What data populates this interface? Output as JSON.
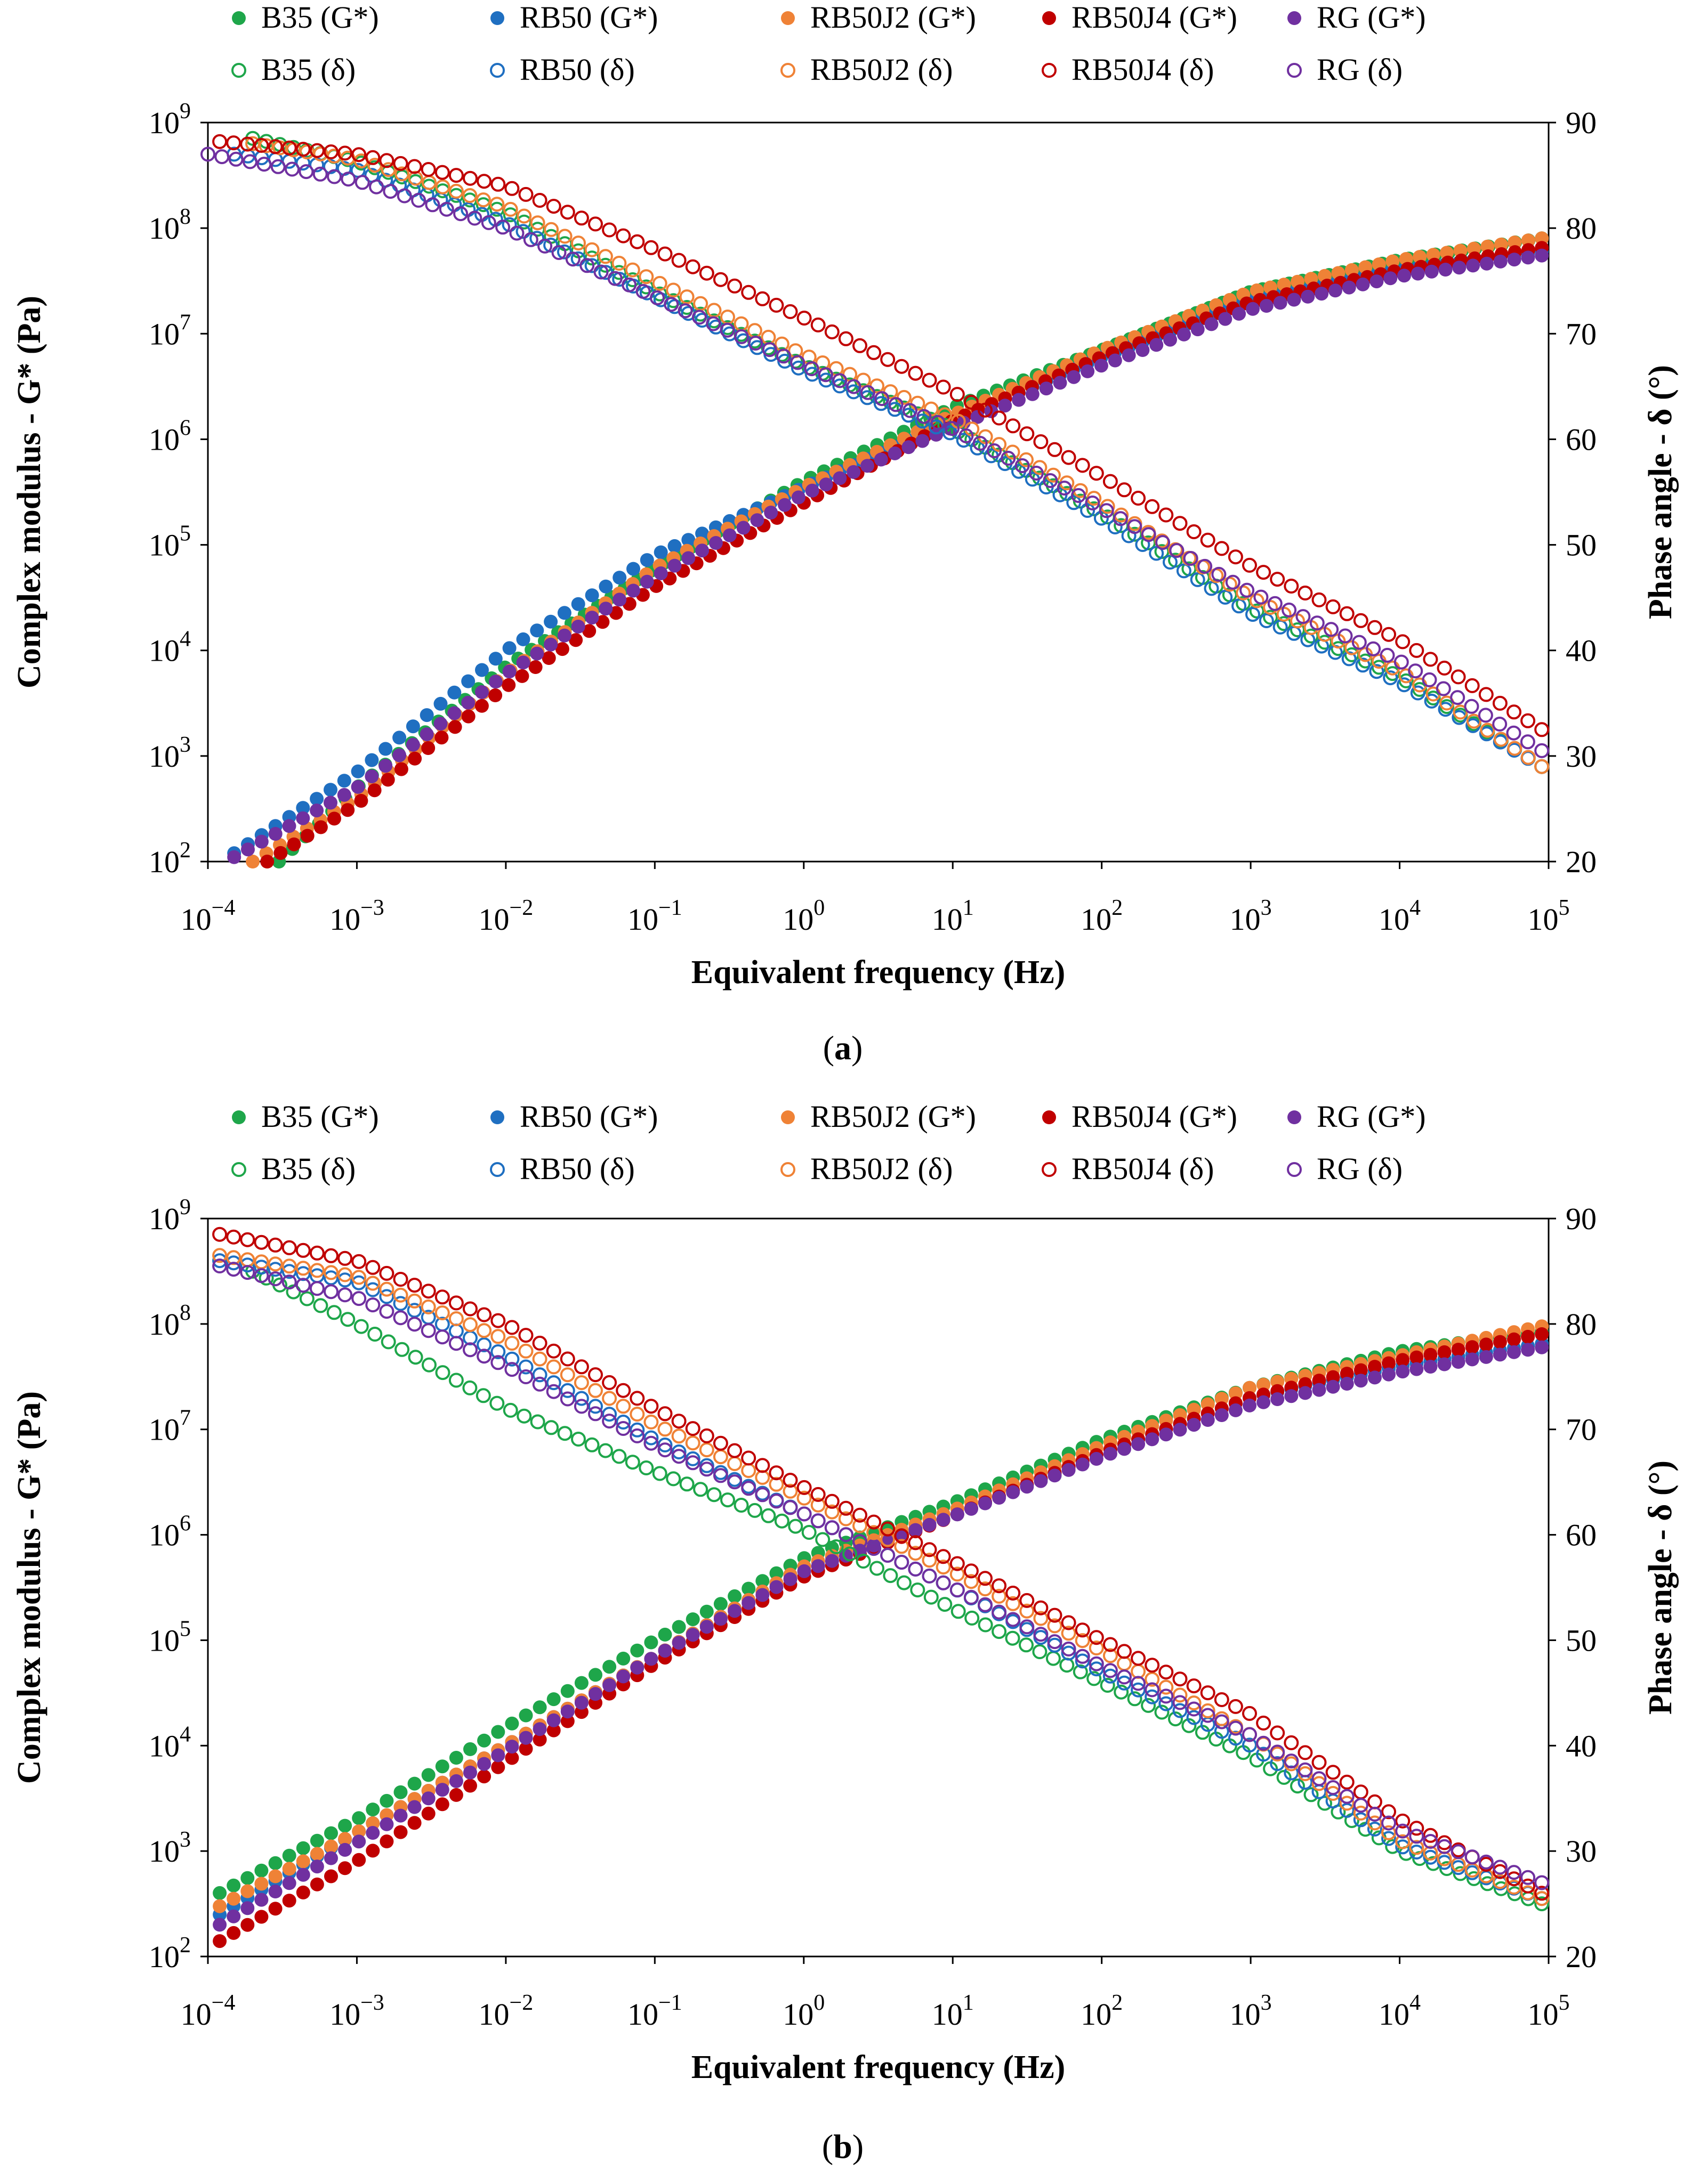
{
  "colors": {
    "B35": "#1ea64a",
    "RB50": "#1f6fc1",
    "RB50J2": "#ef8236",
    "RB50J4": "#c00000",
    "RG": "#7030a0"
  },
  "chart_data": [
    {
      "type": "scatter",
      "panel_label": "a",
      "xlabel": "Equivalent frequency (Hz)",
      "ylabel": "Complex modulus - G* (Pa)",
      "y2label": "Phase  angle - δ (°)",
      "xscale": "log",
      "yscale": "log",
      "xlim": [
        0.0001,
        100000
      ],
      "ylim": [
        100,
        1000000000
      ],
      "y2lim": [
        20,
        90
      ],
      "x_tick_labels": [
        "10−4",
        "10−3",
        "10−2",
        "10−1",
        "100",
        "101",
        "102",
        "103",
        "104",
        "105"
      ],
      "x_tick_exponents": [
        "−4",
        "−3",
        "−2",
        "−1",
        "0",
        "1",
        "2",
        "3",
        "4",
        "5"
      ],
      "y_tick_labels": [
        "102",
        "103",
        "104",
        "105",
        "106",
        "107",
        "108",
        "109"
      ],
      "y_tick_exponents": [
        "2",
        "3",
        "4",
        "5",
        "6",
        "7",
        "8",
        "9"
      ],
      "y2_tick_labels": [
        "20",
        "30",
        "40",
        "50",
        "60",
        "70",
        "80",
        "90"
      ],
      "legend_position": "top",
      "legend": [
        "B35 (G*)",
        "RB50 (G*)",
        "RB50J2 (G*)",
        "RB50J4 (G*)",
        "RG (G*)",
        "B35 (δ)",
        "RB50 (δ)",
        "RB50J2 (δ)",
        "RB50J4 (δ)",
        "RG (δ)"
      ],
      "series": [
        {
          "name": "B35 (G*)",
          "key": "B35",
          "kind": "G",
          "marker": "filled",
          "x": [
            0.0003,
            0.001,
            0.01,
            0.1,
            1,
            10,
            100,
            1000,
            10000,
            90000
          ],
          "y": [
            100,
            500,
            7000,
            60000,
            400000,
            2000000,
            7000000,
            25000000,
            50000000,
            80000000
          ]
        },
        {
          "name": "RB50 (G*)",
          "key": "RB50",
          "kind": "G",
          "marker": "filled",
          "x": [
            0.00015,
            0.001,
            0.01,
            0.1,
            1,
            10,
            100,
            1000,
            10000,
            90000
          ],
          "y": [
            120,
            700,
            10000,
            80000,
            350000,
            1500000,
            6000000,
            20000000,
            40000000,
            60000000
          ]
        },
        {
          "name": "RB50J2 (G*)",
          "key": "RB50J2",
          "kind": "G",
          "marker": "filled",
          "x": [
            0.0002,
            0.001,
            0.01,
            0.1,
            1,
            10,
            100,
            1000,
            10000,
            90000
          ],
          "y": [
            100,
            400,
            6000,
            60000,
            350000,
            1700000,
            7000000,
            25000000,
            50000000,
            80000000
          ]
        },
        {
          "name": "RB50J4 (G*)",
          "key": "RB50J4",
          "kind": "G",
          "marker": "filled",
          "x": [
            0.00025,
            0.001,
            0.01,
            0.1,
            1,
            10,
            100,
            1000,
            10000,
            90000
          ],
          "y": [
            100,
            350,
            4500,
            40000,
            250000,
            1500000,
            6000000,
            20000000,
            40000000,
            65000000
          ]
        },
        {
          "name": "RG (G*)",
          "key": "RG",
          "kind": "G",
          "marker": "filled",
          "x": [
            0.00015,
            0.001,
            0.01,
            0.1,
            1,
            10,
            100,
            1000,
            10000,
            90000
          ],
          "y": [
            110,
            500,
            6000,
            50000,
            300000,
            1300000,
            5000000,
            17000000,
            35000000,
            55000000
          ]
        },
        {
          "name": "B35 (δ)",
          "key": "B35",
          "kind": "d",
          "marker": "open",
          "x": [
            0.0002,
            0.001,
            0.01,
            0.1,
            1,
            10,
            100,
            1000,
            10000,
            90000
          ],
          "y": [
            88.5,
            86.3,
            81.5,
            74,
            67,
            61,
            53,
            44,
            37.5,
            29
          ]
        },
        {
          "name": "RB50 (δ)",
          "key": "RB50",
          "kind": "d",
          "marker": "open",
          "x": [
            0.00015,
            0.001,
            0.01,
            0.1,
            1,
            10,
            100,
            1000,
            10000,
            90000
          ],
          "y": [
            87,
            85.5,
            80.5,
            73.5,
            66.5,
            60.5,
            52.5,
            43.5,
            37,
            29
          ]
        },
        {
          "name": "RB50J2 (δ)",
          "key": "RB50J2",
          "kind": "d",
          "marker": "open",
          "x": [
            0.0002,
            0.001,
            0.01,
            0.1,
            1,
            10,
            100,
            1000,
            10000,
            90000
          ],
          "y": [
            88,
            86.5,
            82,
            75,
            68,
            62,
            54,
            45,
            38,
            29
          ]
        },
        {
          "name": "RB50J4 (δ)",
          "key": "RB50J4",
          "kind": "d",
          "marker": "open",
          "x": [
            0.00012,
            0.001,
            0.01,
            0.1,
            1,
            10,
            100,
            1000,
            10000,
            90000
          ],
          "y": [
            88.2,
            87,
            84,
            78,
            71.5,
            64.5,
            56.5,
            48,
            41,
            32.5
          ]
        },
        {
          "name": "RG (δ)",
          "key": "RG",
          "kind": "d",
          "marker": "open",
          "x": [
            0.0001,
            0.001,
            0.01,
            0.1,
            1,
            10,
            100,
            1000,
            10000,
            90000
          ],
          "y": [
            87,
            84.5,
            80,
            73.5,
            67,
            61,
            53.5,
            45.5,
            39,
            30.5
          ]
        }
      ]
    },
    {
      "type": "scatter",
      "panel_label": "b",
      "xlabel": "Equivalent frequency (Hz)",
      "ylabel": "Complex modulus - G* (Pa)",
      "y2label": "Phase  angle - δ (°)",
      "xscale": "log",
      "yscale": "log",
      "xlim": [
        0.0001,
        100000
      ],
      "ylim": [
        100,
        1000000000
      ],
      "y2lim": [
        20,
        90
      ],
      "x_tick_labels": [
        "10−4",
        "10−3",
        "10−2",
        "10−1",
        "100",
        "101",
        "102",
        "103",
        "104",
        "105"
      ],
      "x_tick_exponents": [
        "−4",
        "−3",
        "−2",
        "−1",
        "0",
        "1",
        "2",
        "3",
        "4",
        "5"
      ],
      "y_tick_labels": [
        "102",
        "103",
        "104",
        "105",
        "106",
        "107",
        "108",
        "109"
      ],
      "y_tick_exponents": [
        "2",
        "3",
        "4",
        "5",
        "6",
        "7",
        "8",
        "9"
      ],
      "y2_tick_labels": [
        "20",
        "30",
        "40",
        "50",
        "60",
        "70",
        "80",
        "90"
      ],
      "legend_position": "top",
      "legend": [
        "B35 (G*)",
        "RB50 (G*)",
        "RB50J2 (G*)",
        "RB50J4 (G*)",
        "RG (G*)",
        "B35 (δ)",
        "RB50 (δ)",
        "RB50J2 (δ)",
        "RB50J4 (δ)",
        "RG (δ)"
      ],
      "series": [
        {
          "name": "B35 (G*)",
          "key": "B35",
          "kind": "G",
          "marker": "filled",
          "x": [
            0.00012,
            0.001,
            0.01,
            0.1,
            1,
            10,
            100,
            1000,
            10000,
            90000
          ],
          "y": [
            400,
            2000,
            15000,
            100000,
            600000,
            2000000,
            8000000,
            25000000,
            55000000,
            85000000
          ]
        },
        {
          "name": "RB50 (G*)",
          "key": "RB50",
          "kind": "G",
          "marker": "filled",
          "x": [
            0.00012,
            0.001,
            0.01,
            0.1,
            1,
            10,
            100,
            1000,
            10000,
            90000
          ],
          "y": [
            250,
            1500,
            10000,
            70000,
            500000,
            1500000,
            6000000,
            20000000,
            40000000,
            65000000
          ]
        },
        {
          "name": "RB50J2 (G*)",
          "key": "RB50J2",
          "kind": "G",
          "marker": "filled",
          "x": [
            0.00012,
            0.001,
            0.01,
            0.1,
            1,
            10,
            100,
            1000,
            10000,
            90000
          ],
          "y": [
            300,
            1500,
            10000,
            70000,
            500000,
            1700000,
            7000000,
            25000000,
            50000000,
            95000000
          ]
        },
        {
          "name": "RB50J4 (G*)",
          "key": "RB50J4",
          "kind": "G",
          "marker": "filled",
          "x": [
            0.00012,
            0.001,
            0.01,
            0.1,
            1,
            10,
            100,
            1000,
            10000,
            90000
          ],
          "y": [
            140,
            800,
            7000,
            60000,
            400000,
            1500000,
            6000000,
            20000000,
            45000000,
            80000000
          ]
        },
        {
          "name": "RG (G*)",
          "key": "RG",
          "kind": "G",
          "marker": "filled",
          "x": [
            0.00012,
            0.001,
            0.01,
            0.1,
            1,
            10,
            100,
            1000,
            10000,
            90000
          ],
          "y": [
            200,
            1200,
            9000,
            70000,
            450000,
            1500000,
            5500000,
            17000000,
            35000000,
            60000000
          ]
        },
        {
          "name": "B35 (δ)",
          "key": "B35",
          "kind": "d",
          "marker": "open",
          "x": [
            0.0002,
            0.001,
            0.01,
            0.1,
            1,
            10,
            100,
            1000,
            10000,
            90000
          ],
          "y": [
            85,
            80,
            72,
            66,
            60.5,
            53,
            46,
            39,
            30,
            25
          ]
        },
        {
          "name": "RB50 (δ)",
          "key": "RB50",
          "kind": "d",
          "marker": "open",
          "x": [
            0.00012,
            0.001,
            0.01,
            0.1,
            1,
            10,
            100,
            1000,
            10000,
            90000
          ],
          "y": [
            86,
            84,
            77,
            69,
            62,
            55,
            47,
            40,
            30.5,
            25.5
          ]
        },
        {
          "name": "RB50J2 (δ)",
          "key": "RB50J2",
          "kind": "d",
          "marker": "open",
          "x": [
            0.00012,
            0.001,
            0.01,
            0.1,
            1,
            10,
            100,
            1000,
            10000,
            90000
          ],
          "y": [
            86.5,
            84.5,
            78.5,
            70.5,
            63.5,
            56.5,
            49,
            41,
            31,
            25.5
          ]
        },
        {
          "name": "RB50J4 (δ)",
          "key": "RB50J4",
          "kind": "d",
          "marker": "open",
          "x": [
            0.00012,
            0.001,
            0.01,
            0.1,
            1,
            10,
            100,
            1000,
            10000,
            90000
          ],
          "y": [
            88.5,
            86,
            80,
            72,
            64.5,
            57.5,
            50,
            43,
            33,
            26
          ]
        },
        {
          "name": "RG (δ)",
          "key": "RG",
          "kind": "d",
          "marker": "open",
          "x": [
            0.00012,
            0.001,
            0.01,
            0.1,
            1,
            10,
            100,
            1000,
            10000,
            90000
          ],
          "y": [
            85.5,
            82.5,
            76,
            68.5,
            62,
            55,
            47.5,
            41,
            32,
            27
          ]
        }
      ]
    }
  ]
}
